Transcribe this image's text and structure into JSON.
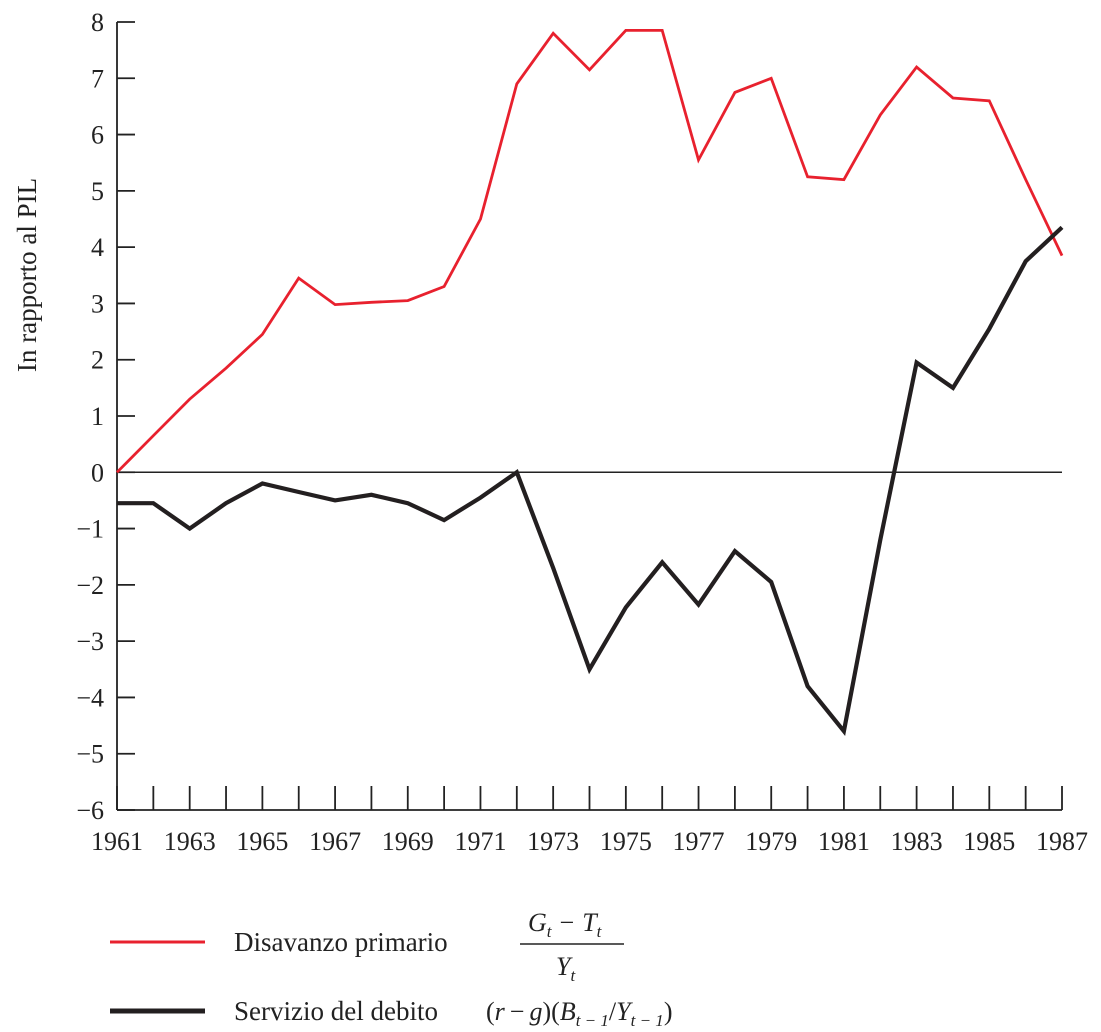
{
  "chart_data": {
    "type": "line",
    "ylabel": "In rapporto al PIL",
    "ylim": [
      -6,
      8
    ],
    "yticks": [
      "8",
      "7",
      "6",
      "5",
      "4",
      "3",
      "2",
      "1",
      "0",
      "−1",
      "−2",
      "−3",
      "−4",
      "−5",
      "−6"
    ],
    "xlim": [
      1961,
      1987
    ],
    "xtick_labels": [
      "1961",
      "1963",
      "1965",
      "1967",
      "1969",
      "1971",
      "1973",
      "1975",
      "1977",
      "1979",
      "1981",
      "1983",
      "1985",
      "1987"
    ],
    "x": [
      1961,
      1962,
      1963,
      1964,
      1965,
      1966,
      1967,
      1968,
      1969,
      1970,
      1971,
      1972,
      1973,
      1974,
      1975,
      1976,
      1977,
      1978,
      1979,
      1980,
      1981,
      1982,
      1983,
      1984,
      1985,
      1986,
      1987
    ],
    "series": [
      {
        "key": "primary-deficit",
        "color": "#e8212e",
        "values": [
          0.0,
          0.65,
          1.3,
          1.85,
          2.45,
          3.45,
          2.98,
          3.02,
          3.05,
          3.3,
          4.5,
          6.9,
          7.8,
          7.15,
          7.85,
          7.85,
          5.55,
          6.75,
          7.0,
          5.25,
          5.2,
          6.35,
          7.2,
          6.65,
          6.6,
          5.2,
          3.85
        ]
      },
      {
        "key": "debt-service",
        "color": "#231f20",
        "values": [
          -0.55,
          -0.55,
          -1.0,
          -0.55,
          -0.2,
          -0.35,
          -0.5,
          -0.4,
          -0.55,
          -0.85,
          -0.45,
          0.0,
          -1.7,
          -3.5,
          -2.4,
          -1.6,
          -2.35,
          -1.4,
          -1.95,
          -3.8,
          -4.6,
          -1.2,
          1.95,
          1.5,
          2.55,
          3.75,
          4.35
        ]
      }
    ],
    "legend": {
      "placement": "bottom",
      "entries": [
        {
          "label": "Disavanzo primario",
          "color": "#e8212e",
          "formula": {
            "num_g": "G",
            "num_sub_t": "t",
            "minus": "−",
            "num_t": "T",
            "num_sub_t2": "t",
            "den_y": "Y",
            "den_sub_t": "t"
          }
        },
        {
          "label": "Servizio del debito",
          "color": "#231f20",
          "formula": {
            "open1": "(",
            "r": "r",
            "minus": "−",
            "g": "g",
            "close1": ")",
            "open2": "(",
            "b": "B",
            "b_sub": "t − 1",
            "slash": "/",
            "y": "Y",
            "y_sub": "t − 1",
            "close2": ")"
          }
        }
      ]
    },
    "grid": false,
    "zero_line": true
  }
}
